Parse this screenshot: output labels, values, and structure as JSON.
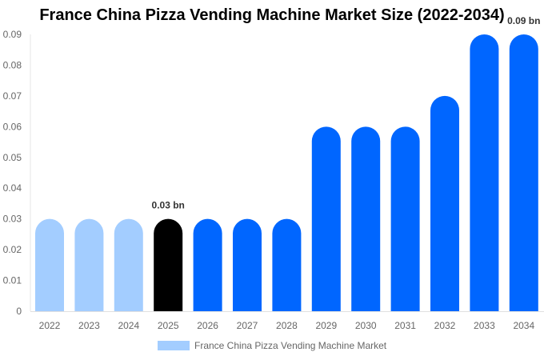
{
  "chart_data": {
    "type": "bar",
    "title": "France China Pizza Vending Machine Market Size (2022-2034)",
    "categories": [
      "2022",
      "2023",
      "2024",
      "2025",
      "2026",
      "2027",
      "2028",
      "2029",
      "2030",
      "2031",
      "2032",
      "2033",
      "2034"
    ],
    "series": [
      {
        "name": "France China Pizza Vending Machine Market",
        "values": [
          0.03,
          0.03,
          0.03,
          0.03,
          0.03,
          0.03,
          0.03,
          0.06,
          0.06,
          0.06,
          0.07,
          0.09,
          0.09
        ]
      }
    ],
    "bar_colors": [
      "#a3cdff",
      "#a3cdff",
      "#a3cdff",
      "#000000",
      "#0066ff",
      "#0066ff",
      "#0066ff",
      "#0066ff",
      "#0066ff",
      "#0066ff",
      "#0066ff",
      "#0066ff",
      "#0066ff"
    ],
    "data_labels": [
      {
        "index": 3,
        "text": "0.03 bn"
      },
      {
        "index": 12,
        "text": "0.09 bn"
      }
    ],
    "ylim": [
      0,
      0.09
    ],
    "yticks": [
      "0",
      "0.01",
      "0.02",
      "0.03",
      "0.04",
      "0.05",
      "0.06",
      "0.07",
      "0.08",
      "0.09"
    ],
    "xlabel": "",
    "ylabel": "",
    "grid": false,
    "legend_position": "bottom",
    "legend_color": "#a3cdff"
  }
}
